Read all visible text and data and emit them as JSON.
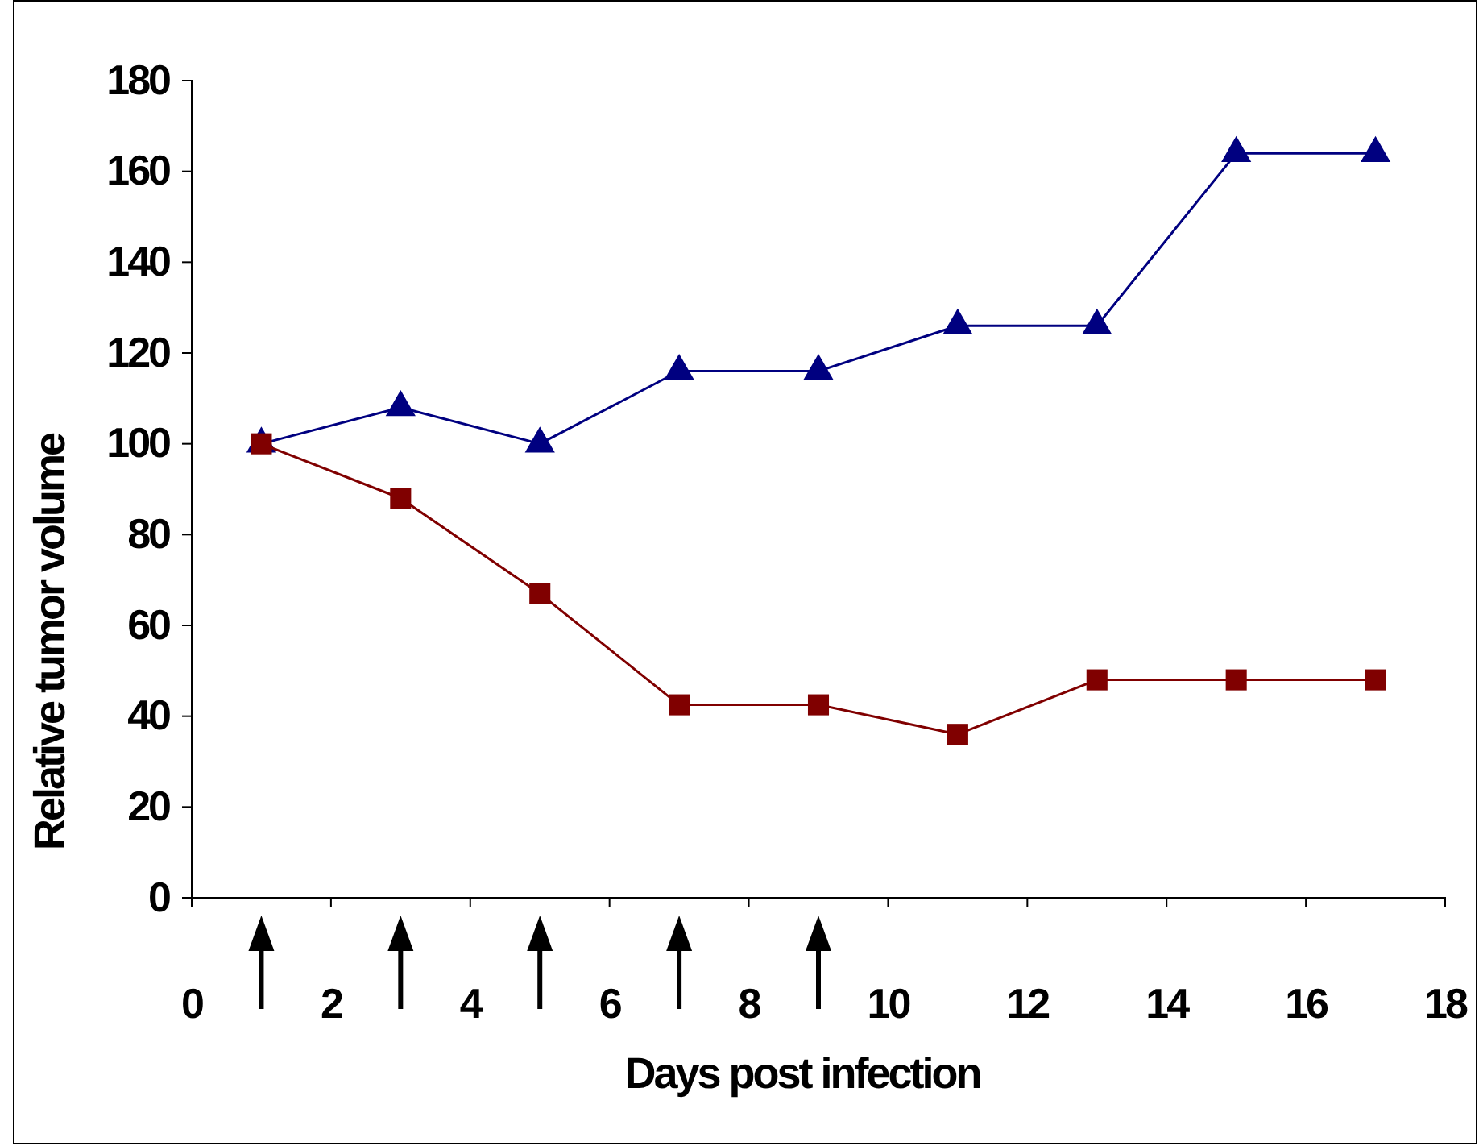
{
  "chart_data": {
    "type": "line",
    "xlabel": "Days post infection",
    "ylabel": "Relative tumor volume",
    "x": [
      1,
      3,
      5,
      7,
      9,
      11,
      13,
      15,
      17
    ],
    "series": [
      {
        "color": "#000080",
        "marker": "triangle",
        "values": [
          100,
          108,
          100,
          116,
          116,
          126,
          126,
          164,
          164
        ]
      },
      {
        "color": "#800000",
        "marker": "square",
        "values": [
          100,
          88,
          67,
          42.5,
          42.5,
          36,
          48,
          48,
          48
        ]
      }
    ],
    "xlim": [
      0,
      18
    ],
    "xticks": [
      0,
      2,
      4,
      6,
      8,
      10,
      12,
      14,
      16,
      18
    ],
    "ylim": [
      0,
      180
    ],
    "yticks": [
      0,
      20,
      40,
      60,
      80,
      100,
      120,
      140,
      160,
      180
    ],
    "grid": false
  }
}
